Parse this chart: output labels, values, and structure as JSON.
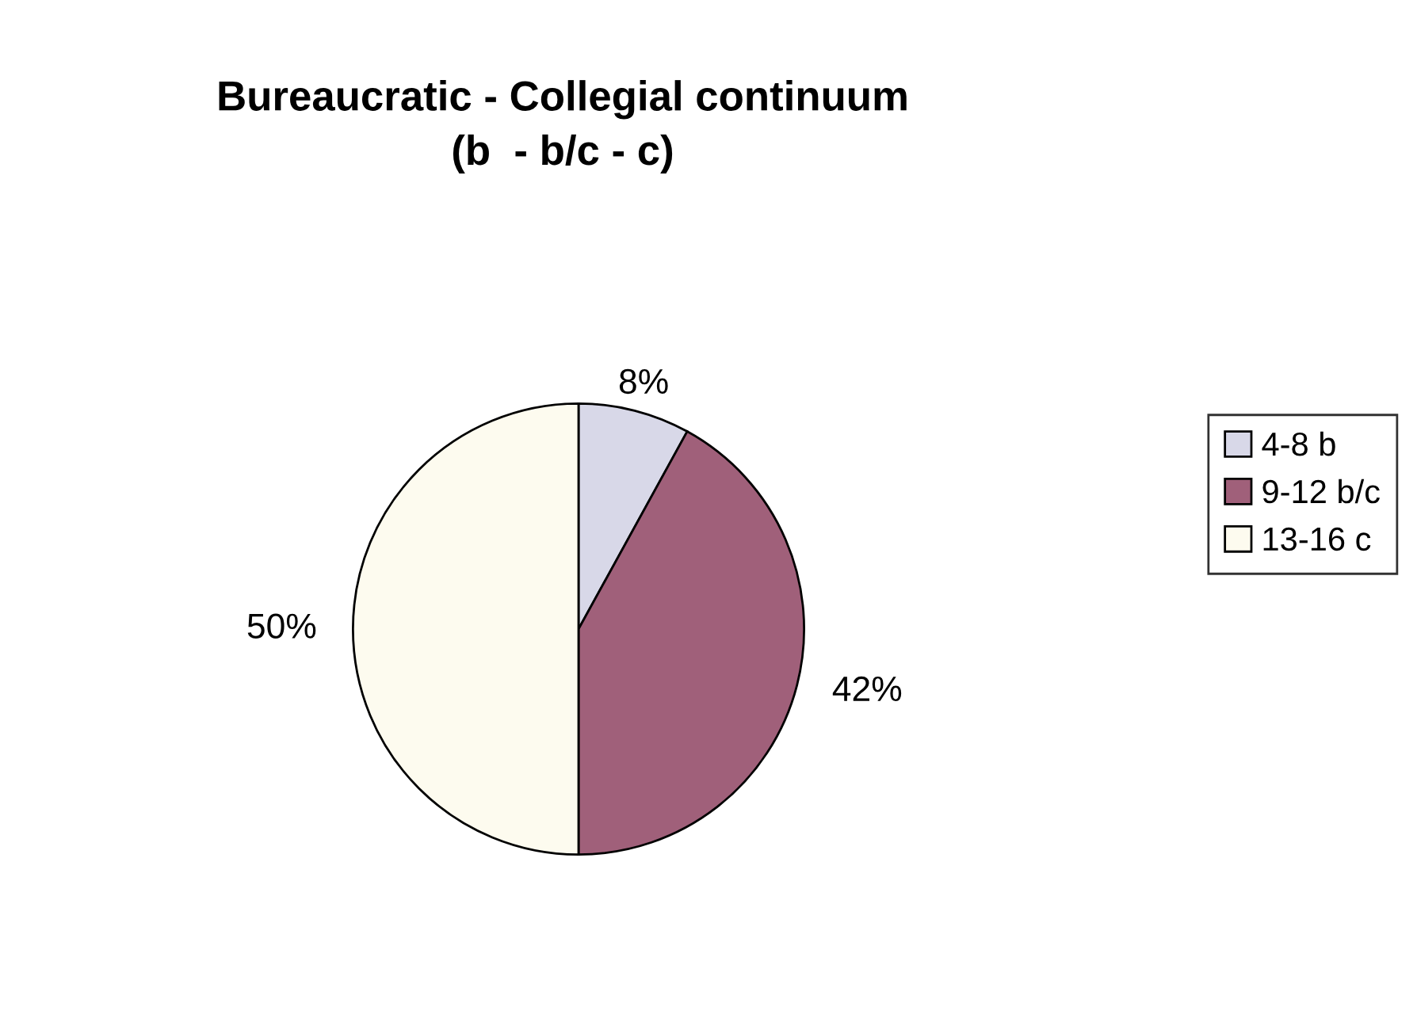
{
  "chart_data": {
    "type": "pie",
    "title": "Bureaucratic - Collegial continuum\n(b  - b/c - c)",
    "categories": [
      "4-8 b",
      "9-12 b/c",
      "13-16 c"
    ],
    "values": [
      8,
      42,
      50
    ],
    "value_labels": [
      "8%",
      "42%",
      "50%"
    ],
    "colors": [
      "#d8d8e8",
      "#a0607a",
      "#fdfbef"
    ],
    "legend": "right"
  }
}
